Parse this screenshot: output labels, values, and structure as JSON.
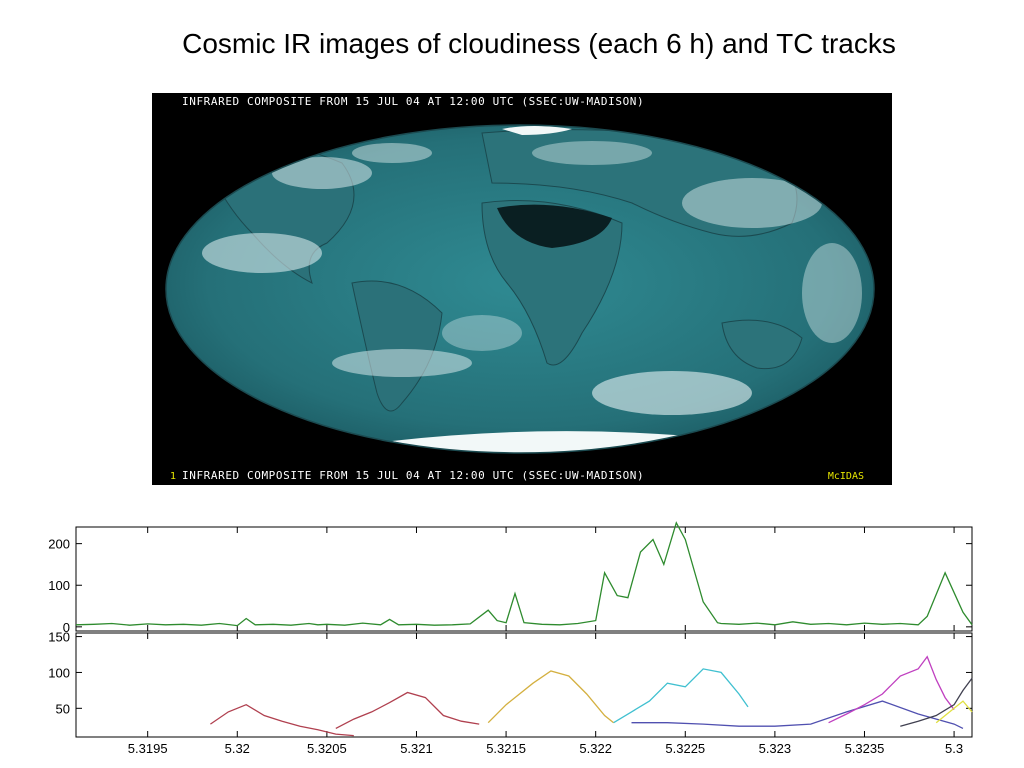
{
  "slide": {
    "title": "Cosmic IR images of cloudiness (each 6 h) and TC tracks"
  },
  "satellite_image": {
    "caption_top": "INFRARED COMPOSITE FROM 15 JUL 04 AT 12:00 UTC (SSEC:UW-MADISON)",
    "caption_bottom": "INFRARED COMPOSITE FROM 15 JUL 04 AT 12:00 UTC (SSEC:UW-MADISON)",
    "frame_number": "1",
    "logo_text": "McIDAS",
    "colors": {
      "ocean": "#2a7a82",
      "cloud": "#e8f4f5",
      "background": "#000000",
      "land_dry": "#0a1f22"
    }
  },
  "chart_data": [
    {
      "type": "line",
      "x_range": [
        5.3191,
        5.3241
      ],
      "ylim": [
        -10,
        240
      ],
      "y_ticks": [
        "200",
        "100",
        "0"
      ],
      "grid": false,
      "series": [
        {
          "color": "#2e8b2e",
          "points": [
            [
              5.3191,
              5
            ],
            [
              5.3192,
              6
            ],
            [
              5.3193,
              8
            ],
            [
              5.3194,
              4
            ],
            [
              5.3195,
              7
            ],
            [
              5.3196,
              5
            ],
            [
              5.3197,
              6
            ],
            [
              5.3198,
              4
            ],
            [
              5.3199,
              8
            ],
            [
              5.32,
              3
            ],
            [
              5.32005,
              20
            ],
            [
              5.3201,
              5
            ],
            [
              5.3202,
              6
            ],
            [
              5.3203,
              4
            ],
            [
              5.3204,
              8
            ],
            [
              5.32045,
              5
            ],
            [
              5.3205,
              6
            ],
            [
              5.3206,
              4
            ],
            [
              5.3207,
              9
            ],
            [
              5.3208,
              5
            ],
            [
              5.32085,
              18
            ],
            [
              5.3209,
              5
            ],
            [
              5.321,
              6
            ],
            [
              5.3211,
              4
            ],
            [
              5.3212,
              5
            ],
            [
              5.3213,
              7
            ],
            [
              5.3214,
              40
            ],
            [
              5.32145,
              15
            ],
            [
              5.3215,
              10
            ],
            [
              5.32155,
              80
            ],
            [
              5.3216,
              10
            ],
            [
              5.3217,
              6
            ],
            [
              5.3218,
              5
            ],
            [
              5.3219,
              8
            ],
            [
              5.322,
              15
            ],
            [
              5.32205,
              130
            ],
            [
              5.32212,
              75
            ],
            [
              5.32218,
              70
            ],
            [
              5.32225,
              180
            ],
            [
              5.32232,
              210
            ],
            [
              5.32238,
              150
            ],
            [
              5.32245,
              250
            ],
            [
              5.3225,
              210
            ],
            [
              5.3226,
              60
            ],
            [
              5.32268,
              10
            ],
            [
              5.3227,
              8
            ],
            [
              5.3228,
              6
            ],
            [
              5.3229,
              9
            ],
            [
              5.323,
              5
            ],
            [
              5.3231,
              12
            ],
            [
              5.3232,
              6
            ],
            [
              5.3233,
              8
            ],
            [
              5.3234,
              5
            ],
            [
              5.3235,
              9
            ],
            [
              5.3236,
              6
            ],
            [
              5.3237,
              8
            ],
            [
              5.3238,
              5
            ],
            [
              5.32385,
              25
            ],
            [
              5.32395,
              130
            ],
            [
              5.32405,
              35
            ],
            [
              5.3241,
              5
            ]
          ]
        }
      ]
    },
    {
      "type": "line",
      "x_range": [
        5.3191,
        5.3241
      ],
      "x_ticks": [
        "5.3195",
        "5.32",
        "5.3205",
        "5.321",
        "5.3215",
        "5.322",
        "5.3225",
        "5.323",
        "5.3235",
        "5.3"
      ],
      "ylim": [
        10,
        155
      ],
      "y_ticks": [
        "150",
        "100",
        "50"
      ],
      "grid": false,
      "series": [
        {
          "color": "#b0404f",
          "points": [
            [
              5.31985,
              28
            ],
            [
              5.31995,
              45
            ],
            [
              5.32005,
              55
            ],
            [
              5.32015,
              40
            ],
            [
              5.32025,
              32
            ],
            [
              5.32035,
              25
            ],
            [
              5.32045,
              20
            ],
            [
              5.32055,
              14
            ],
            [
              5.32065,
              12
            ]
          ]
        },
        {
          "color": "#b0404f",
          "points": [
            [
              5.32055,
              22
            ],
            [
              5.32065,
              35
            ],
            [
              5.32075,
              45
            ],
            [
              5.32085,
              58
            ],
            [
              5.32095,
              72
            ],
            [
              5.32105,
              65
            ],
            [
              5.32115,
              40
            ],
            [
              5.32125,
              32
            ],
            [
              5.32135,
              28
            ]
          ]
        },
        {
          "color": "#d4b040",
          "points": [
            [
              5.3214,
              30
            ],
            [
              5.3215,
              55
            ],
            [
              5.32165,
              85
            ],
            [
              5.32175,
              102
            ],
            [
              5.32185,
              95
            ],
            [
              5.32195,
              70
            ],
            [
              5.32205,
              40
            ],
            [
              5.3221,
              30
            ]
          ]
        },
        {
          "color": "#40c0d0",
          "points": [
            [
              5.3221,
              30
            ],
            [
              5.3222,
              45
            ],
            [
              5.3223,
              60
            ],
            [
              5.3224,
              85
            ],
            [
              5.3225,
              80
            ],
            [
              5.3226,
              105
            ],
            [
              5.3227,
              100
            ],
            [
              5.3228,
              70
            ],
            [
              5.32285,
              52
            ]
          ]
        },
        {
          "color": "#5050b0",
          "points": [
            [
              5.3222,
              30
            ],
            [
              5.3224,
              30
            ],
            [
              5.3226,
              28
            ],
            [
              5.3228,
              25
            ],
            [
              5.323,
              25
            ],
            [
              5.3232,
              28
            ],
            [
              5.3234,
              45
            ],
            [
              5.3236,
              60
            ],
            [
              5.3238,
              42
            ],
            [
              5.324,
              28
            ],
            [
              5.32405,
              22
            ]
          ]
        },
        {
          "color": "#c040c0",
          "points": [
            [
              5.3233,
              30
            ],
            [
              5.3234,
              42
            ],
            [
              5.3235,
              55
            ],
            [
              5.3236,
              70
            ],
            [
              5.3237,
              95
            ],
            [
              5.3238,
              105
            ],
            [
              5.32385,
              122
            ],
            [
              5.3239,
              90
            ],
            [
              5.32395,
              65
            ],
            [
              5.324,
              48
            ]
          ]
        },
        {
          "color": "#404050",
          "points": [
            [
              5.3237,
              25
            ],
            [
              5.3238,
              32
            ],
            [
              5.3239,
              40
            ],
            [
              5.324,
              55
            ],
            [
              5.32405,
              75
            ],
            [
              5.3241,
              92
            ]
          ]
        },
        {
          "color": "#e0e040",
          "points": [
            [
              5.3239,
              30
            ],
            [
              5.324,
              50
            ],
            [
              5.32405,
              60
            ],
            [
              5.3241,
              45
            ]
          ]
        }
      ]
    }
  ]
}
